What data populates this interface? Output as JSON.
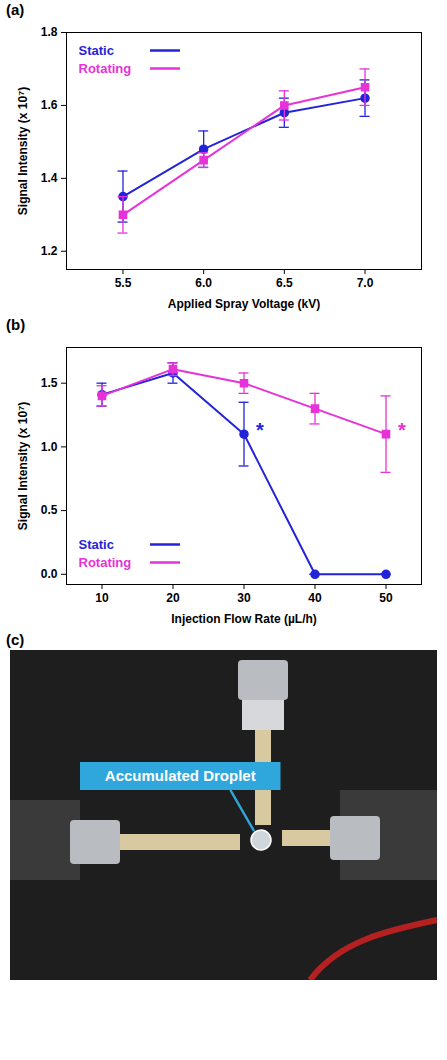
{
  "chart_data": [
    {
      "type": "line",
      "panel_label": "(a)",
      "x_label": "Applied Spray Voltage (kV)",
      "y_label": "Signal Intensity (x 10⁷)",
      "x": [
        5.5,
        6.0,
        6.5,
        7.0
      ],
      "xlim": [
        5.15,
        7.35
      ],
      "xticks": [
        5.5,
        {
          "value": 6,
          "label": "6.0"
        },
        6.5,
        {
          "value": 7,
          "label": "7.0"
        }
      ],
      "ylim": [
        1.15,
        1.8
      ],
      "yticks": [
        1.2,
        1.4,
        1.6,
        1.8
      ],
      "legend": "top-left",
      "series": [
        {
          "name": "Static",
          "color": "#2323d9",
          "marker": "circle",
          "values": [
            1.35,
            1.48,
            1.58,
            1.62
          ],
          "errors": [
            0.07,
            0.05,
            0.04,
            0.05
          ]
        },
        {
          "name": "Rotating",
          "color": "#e632d8",
          "marker": "square",
          "values": [
            1.3,
            1.45,
            1.6,
            1.65
          ],
          "errors": [
            0.05,
            0.02,
            0.04,
            0.05
          ]
        }
      ]
    },
    {
      "type": "line",
      "panel_label": "(b)",
      "x_label": "Injection Flow Rate (µL/h)",
      "y_label": "Signal Intensity (x 10⁷)",
      "x": [
        10,
        20,
        30,
        40,
        50
      ],
      "xlim": [
        5,
        55
      ],
      "xticks": [
        10,
        20,
        30,
        40,
        50
      ],
      "ylim": [
        -0.08,
        1.78
      ],
      "yticks": [
        {
          "value": 0,
          "label": "0.0"
        },
        0.5,
        {
          "value": 1,
          "label": "1.0"
        },
        1.5
      ],
      "legend": "bottom-left",
      "series": [
        {
          "name": "Static",
          "color": "#2323d9",
          "marker": "circle",
          "values": [
            1.41,
            1.58,
            1.1,
            0,
            0
          ],
          "errors": [
            0.09,
            0.08,
            0.25,
            0,
            0
          ]
        },
        {
          "name": "Rotating",
          "color": "#e632d8",
          "marker": "square",
          "values": [
            1.4,
            1.61,
            1.5,
            1.3,
            1.1
          ],
          "errors": [
            0.08,
            0.05,
            0.08,
            0.12,
            0.3
          ]
        }
      ],
      "annotations": [
        {
          "text": "*",
          "series": "Static",
          "x": 30,
          "y": 1.1
        },
        {
          "text": "*",
          "series": "Rotating",
          "x": 50,
          "y": 1.1
        }
      ]
    }
  ],
  "photo": {
    "panel_label": "(c)",
    "annotation": "Accumulated Droplet"
  }
}
